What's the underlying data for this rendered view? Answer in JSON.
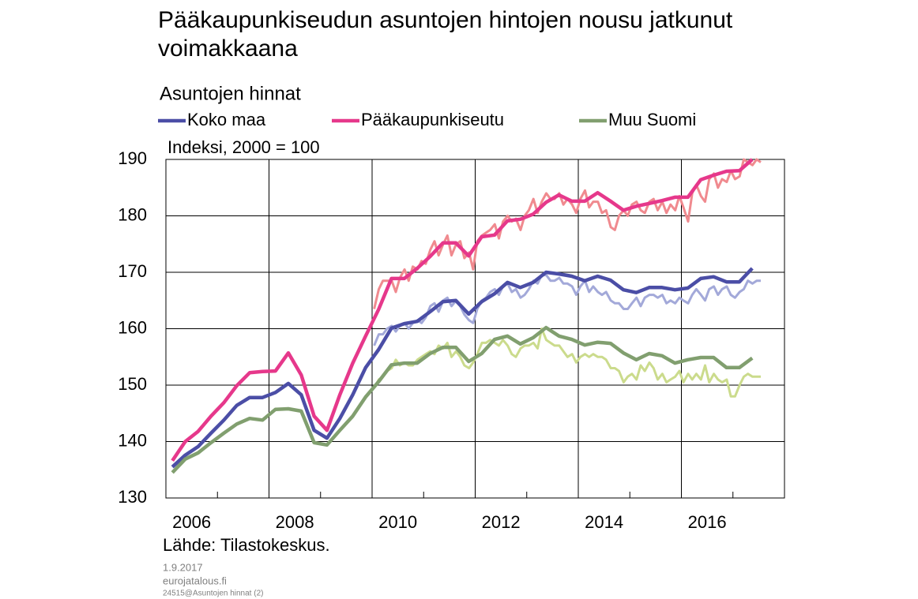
{
  "chart_data": {
    "type": "line",
    "title": "Pääkaupunkiseudun asuntojen hintojen nousu jatkunut voimakkaana",
    "subtitle": "Asuntojen hinnat",
    "y_axis_label": "Indeksi, 2000 = 100",
    "source": "Lähde: Tilastokeskus.",
    "date": "1.9.2017",
    "site": "eurojatalous.fi",
    "file_ref": "24515@Asuntojen hinnat (2)",
    "xlim": [
      2006,
      2018
    ],
    "xticks": [
      2006,
      2008,
      2010,
      2012,
      2014,
      2016
    ],
    "xminorticks": [
      2007,
      2009,
      2011,
      2013,
      2015,
      2017
    ],
    "ylim": [
      130,
      190
    ],
    "yticks": [
      130,
      140,
      150,
      160,
      170,
      180,
      190
    ],
    "grid": true,
    "monthly_series": [
      {
        "color": "#a3a9d9",
        "x": [
          2010.04,
          2010.13,
          2010.21,
          2010.29,
          2010.38,
          2010.46,
          2010.54,
          2010.63,
          2010.71,
          2010.79,
          2010.88,
          2010.96,
          2011.04,
          2011.13,
          2011.21,
          2011.29,
          2011.38,
          2011.46,
          2011.54,
          2011.63,
          2011.71,
          2011.79,
          2011.88,
          2011.96,
          2012.04,
          2012.13,
          2012.21,
          2012.29,
          2012.38,
          2012.46,
          2012.54,
          2012.63,
          2012.71,
          2012.79,
          2012.88,
          2012.96,
          2013.04,
          2013.13,
          2013.21,
          2013.29,
          2013.38,
          2013.46,
          2013.54,
          2013.63,
          2013.71,
          2013.79,
          2013.88,
          2013.96,
          2014.04,
          2014.13,
          2014.21,
          2014.29,
          2014.38,
          2014.46,
          2014.54,
          2014.63,
          2014.71,
          2014.79,
          2014.88,
          2014.96,
          2015.04,
          2015.13,
          2015.21,
          2015.29,
          2015.38,
          2015.46,
          2015.54,
          2015.63,
          2015.71,
          2015.79,
          2015.88,
          2015.96,
          2016.04,
          2016.13,
          2016.21,
          2016.29,
          2016.38,
          2016.46,
          2016.54,
          2016.63,
          2016.71,
          2016.79,
          2016.88,
          2016.96,
          2017.04,
          2017.13,
          2017.21,
          2017.29,
          2017.38,
          2017.46,
          2017.54
        ],
        "values": [
          157,
          159,
          159,
          160,
          160.5,
          159.5,
          160.5,
          161,
          160,
          161,
          161.5,
          161,
          162,
          164,
          164.5,
          163,
          165,
          165.5,
          164,
          165,
          164,
          162.5,
          161.5,
          161,
          163.5,
          165,
          165.5,
          166.5,
          167,
          166,
          167.5,
          168,
          166.5,
          167,
          165.5,
          166,
          167,
          168.5,
          168,
          169.5,
          169.5,
          168.5,
          168.5,
          169,
          168,
          168,
          167.5,
          166,
          167.5,
          168.5,
          166.5,
          167.5,
          166.5,
          166,
          166.5,
          165,
          164.5,
          164.5,
          163.5,
          163.5,
          164.5,
          165.5,
          164,
          165.5,
          166,
          166,
          165.5,
          166,
          164.5,
          165,
          164.5,
          165.5,
          165,
          164.5,
          166,
          167,
          166,
          165,
          167,
          167.5,
          166,
          167,
          167.5,
          166,
          165.5,
          166.5,
          167,
          168.5,
          168,
          168.5,
          168.5
        ]
      },
      {
        "color": "#f08a8f",
        "x": [
          2010.04,
          2010.13,
          2010.21,
          2010.29,
          2010.38,
          2010.46,
          2010.54,
          2010.63,
          2010.71,
          2010.79,
          2010.88,
          2010.96,
          2011.04,
          2011.13,
          2011.21,
          2011.29,
          2011.38,
          2011.46,
          2011.54,
          2011.63,
          2011.71,
          2011.79,
          2011.88,
          2011.96,
          2012.04,
          2012.13,
          2012.21,
          2012.29,
          2012.38,
          2012.46,
          2012.54,
          2012.63,
          2012.71,
          2012.79,
          2012.88,
          2012.96,
          2013.04,
          2013.13,
          2013.21,
          2013.29,
          2013.38,
          2013.46,
          2013.54,
          2013.63,
          2013.71,
          2013.79,
          2013.88,
          2013.96,
          2014.04,
          2014.13,
          2014.21,
          2014.29,
          2014.38,
          2014.46,
          2014.54,
          2014.63,
          2014.71,
          2014.79,
          2014.88,
          2014.96,
          2015.04,
          2015.13,
          2015.21,
          2015.29,
          2015.38,
          2015.46,
          2015.54,
          2015.63,
          2015.71,
          2015.79,
          2015.88,
          2015.96,
          2016.04,
          2016.13,
          2016.21,
          2016.29,
          2016.38,
          2016.46,
          2016.54,
          2016.63,
          2016.71,
          2016.79,
          2016.88,
          2016.96,
          2017.04,
          2017.13,
          2017.21,
          2017.29,
          2017.38,
          2017.46,
          2017.54
        ],
        "values": [
          163.5,
          167,
          168.5,
          168.5,
          168.5,
          166.5,
          169,
          170.5,
          168.5,
          171,
          170.5,
          172,
          171.5,
          174,
          175.5,
          173,
          175,
          176.5,
          173,
          175,
          175.5,
          172.5,
          173.5,
          170.5,
          175.5,
          176.5,
          177,
          177.5,
          178.5,
          176,
          179,
          180,
          179,
          179.5,
          177.5,
          180,
          181,
          183,
          180.5,
          182.5,
          184,
          183,
          183,
          184,
          182,
          183,
          182,
          180.5,
          183,
          184.5,
          181.5,
          182.5,
          182.5,
          180.5,
          181,
          178,
          177.5,
          180,
          181,
          180,
          182,
          182.5,
          181,
          180.5,
          182.5,
          183,
          181,
          182.5,
          180.5,
          182,
          181,
          183.5,
          181.5,
          179,
          184,
          185.5,
          183.5,
          182.5,
          186.5,
          187.5,
          185,
          186.5,
          186,
          188,
          186.5,
          187,
          190,
          189.5,
          189,
          190,
          189.5
        ]
      },
      {
        "color": "#cbdb8c",
        "x": [
          2010.04,
          2010.13,
          2010.21,
          2010.29,
          2010.38,
          2010.46,
          2010.54,
          2010.63,
          2010.71,
          2010.79,
          2010.88,
          2010.96,
          2011.04,
          2011.13,
          2011.21,
          2011.29,
          2011.38,
          2011.46,
          2011.54,
          2011.63,
          2011.71,
          2011.79,
          2011.88,
          2011.96,
          2012.04,
          2012.13,
          2012.21,
          2012.29,
          2012.38,
          2012.46,
          2012.54,
          2012.63,
          2012.71,
          2012.79,
          2012.88,
          2012.96,
          2013.04,
          2013.13,
          2013.21,
          2013.29,
          2013.38,
          2013.46,
          2013.54,
          2013.63,
          2013.71,
          2013.79,
          2013.88,
          2013.96,
          2014.04,
          2014.13,
          2014.21,
          2014.29,
          2014.38,
          2014.46,
          2014.54,
          2014.63,
          2014.71,
          2014.79,
          2014.88,
          2014.96,
          2015.04,
          2015.13,
          2015.21,
          2015.29,
          2015.38,
          2015.46,
          2015.54,
          2015.63,
          2015.71,
          2015.79,
          2015.88,
          2015.96,
          2016.04,
          2016.13,
          2016.21,
          2016.29,
          2016.38,
          2016.46,
          2016.54,
          2016.63,
          2016.71,
          2016.79,
          2016.88,
          2016.96,
          2017.04,
          2017.13,
          2017.21,
          2017.29,
          2017.38,
          2017.46,
          2017.54
        ],
        "values": [
          149.5,
          151,
          151.5,
          152.5,
          153,
          154.5,
          153.5,
          154,
          153.5,
          153.5,
          154.5,
          155,
          155.5,
          156,
          155.5,
          157,
          156.5,
          157.5,
          155,
          156,
          155,
          153.5,
          153,
          154,
          155.5,
          157.5,
          157.5,
          158,
          157.5,
          157,
          158,
          157,
          155.5,
          155,
          156.5,
          157,
          157,
          157.5,
          156.5,
          160,
          158,
          157.5,
          157,
          157,
          156,
          155,
          155.5,
          154,
          155,
          155.5,
          155,
          155.5,
          155,
          155,
          154.5,
          153,
          153,
          152.5,
          150.5,
          151.5,
          152,
          151,
          153.5,
          152.5,
          154,
          153,
          151,
          152,
          150.5,
          151,
          151.5,
          152.5,
          150.5,
          152,
          151,
          152,
          151,
          153.5,
          150.5,
          152,
          151,
          150.5,
          151,
          148,
          148,
          150,
          151.5,
          152,
          151.5,
          151.5,
          151.5
        ]
      }
    ],
    "series": [
      {
        "name": "Koko maa",
        "color": "#4b4ea6",
        "x": [
          2006.125,
          2006.375,
          2006.625,
          2006.875,
          2007.125,
          2007.375,
          2007.625,
          2007.875,
          2008.125,
          2008.375,
          2008.625,
          2008.875,
          2009.125,
          2009.375,
          2009.625,
          2009.875,
          2010.125,
          2010.375,
          2010.625,
          2010.875,
          2011.125,
          2011.375,
          2011.625,
          2011.875,
          2012.125,
          2012.375,
          2012.625,
          2012.875,
          2013.125,
          2013.375,
          2013.625,
          2013.875,
          2014.125,
          2014.375,
          2014.625,
          2014.875,
          2015.125,
          2015.375,
          2015.625,
          2015.875,
          2016.125,
          2016.375,
          2016.625,
          2016.875,
          2017.125,
          2017.375
        ],
        "values": [
          135.5,
          137.6,
          139.1,
          141.5,
          143.8,
          146.4,
          147.8,
          147.8,
          148.7,
          150.3,
          148.3,
          142.0,
          140.6,
          144.1,
          148.3,
          153.1,
          156.3,
          160.1,
          160.9,
          161.3,
          163.0,
          164.8,
          165.0,
          162.6,
          164.8,
          166.2,
          168.2,
          167.3,
          168.2,
          170.0,
          169.7,
          169.3,
          168.5,
          169.3,
          168.6,
          166.9,
          166.4,
          167.3,
          167.3,
          166.9,
          167.2,
          168.9,
          169.2,
          168.3,
          168.3,
          170.7
        ]
      },
      {
        "name": "Pääkaupunkiseutu",
        "color": "#e6388b",
        "x": [
          2006.125,
          2006.375,
          2006.625,
          2006.875,
          2007.125,
          2007.375,
          2007.625,
          2007.875,
          2008.125,
          2008.375,
          2008.625,
          2008.875,
          2009.125,
          2009.375,
          2009.625,
          2009.875,
          2010.125,
          2010.375,
          2010.625,
          2010.875,
          2011.125,
          2011.375,
          2011.625,
          2011.875,
          2012.125,
          2012.375,
          2012.625,
          2012.875,
          2013.125,
          2013.375,
          2013.625,
          2013.875,
          2014.125,
          2014.375,
          2014.625,
          2014.875,
          2015.125,
          2015.375,
          2015.625,
          2015.875,
          2016.125,
          2016.375,
          2016.625,
          2016.875,
          2017.125,
          2017.375
        ],
        "values": [
          136.6,
          140.0,
          141.8,
          144.5,
          146.9,
          149.9,
          152.2,
          152.4,
          152.5,
          155.7,
          151.8,
          144.5,
          142.0,
          148.3,
          153.9,
          158.7,
          163.4,
          168.9,
          168.9,
          170.7,
          172.8,
          175.2,
          175.2,
          172.9,
          176.3,
          176.6,
          179.1,
          179.4,
          180.3,
          182.4,
          183.7,
          182.6,
          182.6,
          184.1,
          182.6,
          181.0,
          181.7,
          182.2,
          182.7,
          183.3,
          183.3,
          186.4,
          187.2,
          187.9,
          188.0,
          190.0
        ]
      },
      {
        "name": "Muu Suomi",
        "color": "#819f6f",
        "x": [
          2006.125,
          2006.375,
          2006.625,
          2006.875,
          2007.125,
          2007.375,
          2007.625,
          2007.875,
          2008.125,
          2008.375,
          2008.625,
          2008.875,
          2009.125,
          2009.375,
          2009.625,
          2009.875,
          2010.125,
          2010.375,
          2010.625,
          2010.875,
          2011.125,
          2011.375,
          2011.625,
          2011.875,
          2012.125,
          2012.375,
          2012.625,
          2012.875,
          2013.125,
          2013.375,
          2013.625,
          2013.875,
          2014.125,
          2014.375,
          2014.625,
          2014.875,
          2015.125,
          2015.375,
          2015.625,
          2015.875,
          2016.125,
          2016.375,
          2016.625,
          2016.875,
          2017.125,
          2017.375
        ],
        "values": [
          134.5,
          136.9,
          138.0,
          139.8,
          141.5,
          143.1,
          144.1,
          143.8,
          145.7,
          145.8,
          145.4,
          139.8,
          139.4,
          142.0,
          144.5,
          147.9,
          150.6,
          153.6,
          153.9,
          153.9,
          155.6,
          156.7,
          156.7,
          154.2,
          155.6,
          158.1,
          158.7,
          157.3,
          158.4,
          160.2,
          158.7,
          158.1,
          157.1,
          157.6,
          157.4,
          155.7,
          154.5,
          155.6,
          155.2,
          153.9,
          154.5,
          154.9,
          154.9,
          153.1,
          153.1,
          154.8
        ]
      }
    ]
  }
}
